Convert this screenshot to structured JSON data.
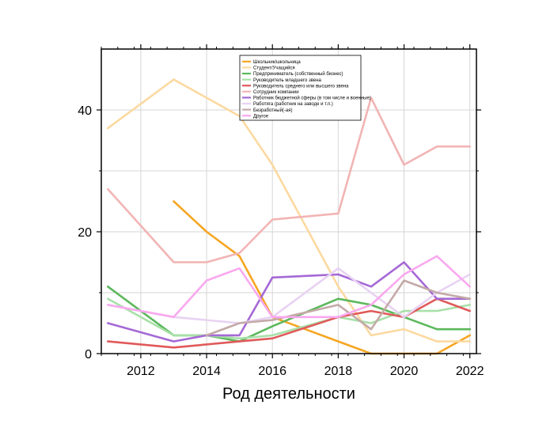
{
  "chart_data": {
    "type": "line",
    "xlabel": "Род деятельности",
    "ylabel": "",
    "xlim": [
      2010.8,
      2022.2
    ],
    "ylim": [
      0,
      50
    ],
    "xticks": [
      2012,
      2014,
      2016,
      2018,
      2020,
      2022
    ],
    "yticks": [
      0,
      20,
      40
    ],
    "grid": true,
    "legend_position": "top-center",
    "series": [
      {
        "name": "Школьник/школьница",
        "color": "#f5a623",
        "points": [
          [
            2013,
            25
          ],
          [
            2014,
            20
          ],
          [
            2015,
            16
          ],
          [
            2016,
            6
          ],
          [
            2017,
            4
          ],
          [
            2018,
            2
          ],
          [
            2019,
            0
          ],
          [
            2020,
            0
          ],
          [
            2021,
            0
          ],
          [
            2022,
            3
          ]
        ]
      },
      {
        "name": "Студент/Учащийся",
        "color": "#fcd9a0",
        "points": [
          [
            2011,
            37
          ],
          [
            2013,
            45
          ],
          [
            2015,
            39
          ],
          [
            2016,
            31
          ],
          [
            2017,
            21
          ],
          [
            2018,
            11
          ],
          [
            2019,
            3
          ],
          [
            2020,
            4
          ],
          [
            2021,
            2
          ],
          [
            2022,
            2
          ]
        ]
      },
      {
        "name": "Предприниматель (собственный бизнес)",
        "color": "#5cb85c",
        "points": [
          [
            2011,
            11
          ],
          [
            2013,
            3
          ],
          [
            2014,
            3
          ],
          [
            2015,
            2
          ],
          [
            2016,
            4.5
          ],
          [
            2018,
            9
          ],
          [
            2019,
            8
          ],
          [
            2020,
            6
          ],
          [
            2021,
            4
          ],
          [
            2022,
            4
          ]
        ]
      },
      {
        "name": "Руководитель младшего звена",
        "color": "#a8e0a8",
        "points": [
          [
            2011,
            9
          ],
          [
            2013,
            3
          ],
          [
            2014,
            3
          ],
          [
            2015,
            2.5
          ],
          [
            2016,
            3
          ],
          [
            2018,
            6
          ],
          [
            2019,
            5
          ],
          [
            2020,
            7
          ],
          [
            2021,
            7
          ],
          [
            2022,
            8
          ]
        ]
      },
      {
        "name": "Руководитель среднего или высшего звена",
        "color": "#e05a5a",
        "points": [
          [
            2011,
            2
          ],
          [
            2013,
            1
          ],
          [
            2015,
            2
          ],
          [
            2016,
            2.5
          ],
          [
            2018,
            6
          ],
          [
            2019,
            7
          ],
          [
            2020,
            6
          ],
          [
            2021,
            9
          ],
          [
            2022,
            7
          ]
        ]
      },
      {
        "name": "Сотрудник компании",
        "color": "#f2b4b4",
        "points": [
          [
            2011,
            27
          ],
          [
            2013,
            15
          ],
          [
            2014,
            15
          ],
          [
            2015,
            16.5
          ],
          [
            2016,
            22
          ],
          [
            2018,
            23
          ],
          [
            2019,
            42
          ],
          [
            2020,
            31
          ],
          [
            2021,
            34
          ],
          [
            2022,
            34
          ]
        ]
      },
      {
        "name": "Работник бюджетной сферы (в том числе и военные)",
        "color": "#a569d6",
        "points": [
          [
            2011,
            5
          ],
          [
            2013,
            2
          ],
          [
            2014,
            3
          ],
          [
            2015,
            3
          ],
          [
            2016,
            12.5
          ],
          [
            2018,
            13
          ],
          [
            2019,
            11
          ],
          [
            2020,
            15
          ],
          [
            2021,
            9
          ],
          [
            2022,
            9
          ]
        ]
      },
      {
        "name": "Работяга (работник на заводе и т.п.)",
        "color": "#e8d2f2",
        "points": [
          [
            2011,
            8
          ],
          [
            2013,
            6
          ],
          [
            2015,
            5
          ],
          [
            2016,
            6
          ],
          [
            2018,
            14
          ],
          [
            2019,
            10
          ],
          [
            2020,
            6
          ],
          [
            2021,
            10
          ],
          [
            2022,
            13
          ]
        ]
      },
      {
        "name": "Безработный(-ая)",
        "color": "#c4aaa8",
        "points": [
          [
            2014,
            3
          ],
          [
            2015,
            5
          ],
          [
            2016,
            5.5
          ],
          [
            2018,
            8
          ],
          [
            2019,
            4
          ],
          [
            2020,
            12
          ],
          [
            2021,
            10
          ],
          [
            2022,
            9
          ]
        ]
      },
      {
        "name": "Другое",
        "color": "#f9a8ef",
        "points": [
          [
            2011,
            8
          ],
          [
            2013,
            6
          ],
          [
            2014,
            12
          ],
          [
            2015,
            14
          ],
          [
            2016,
            6
          ],
          [
            2018,
            6
          ],
          [
            2019,
            8
          ],
          [
            2020,
            13
          ],
          [
            2021,
            16
          ],
          [
            2022,
            11
          ]
        ]
      }
    ]
  }
}
